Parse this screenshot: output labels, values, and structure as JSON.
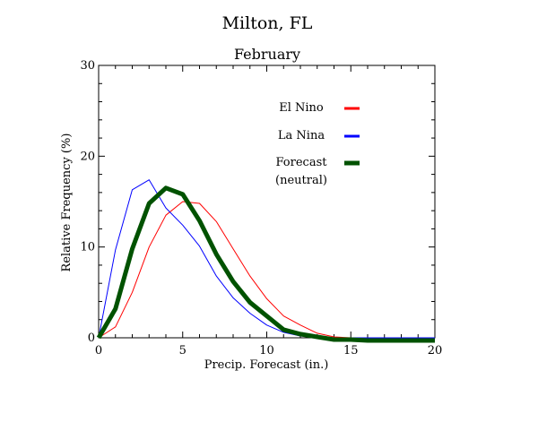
{
  "chart_data": {
    "type": "line",
    "title": "Milton, FL",
    "subtitle": "February",
    "xlabel": "Precip. Forecast (in.)",
    "ylabel": "Relative Frequency (%)",
    "xlim": [
      0,
      20
    ],
    "ylim": [
      0,
      30
    ],
    "x_ticks": [
      0,
      5,
      10,
      15,
      20
    ],
    "y_ticks": [
      0,
      10,
      20,
      30
    ],
    "grid": false,
    "legend_position": "top-right",
    "x": [
      0,
      1,
      2,
      3,
      4,
      5,
      6,
      7,
      8,
      9,
      10,
      11,
      12,
      13,
      14,
      15,
      16,
      17,
      18,
      19,
      20
    ],
    "series": [
      {
        "name": "El Nino",
        "color": "#ff0000",
        "line_weight": "thin",
        "values": [
          0,
          1.2,
          5,
          10,
          13.5,
          15,
          14.8,
          12.8,
          9.8,
          6.8,
          4.3,
          2.4,
          1.4,
          0.5,
          0.1,
          0,
          0,
          0,
          0,
          0,
          0
        ]
      },
      {
        "name": "La Nina",
        "color": "#0000ff",
        "line_weight": "thin",
        "values": [
          0,
          9.7,
          16.3,
          17.4,
          14.3,
          12.4,
          10.1,
          6.8,
          4.4,
          2.7,
          1.4,
          0.6,
          0.2,
          0.1,
          0,
          0,
          0,
          0,
          0,
          0,
          0
        ]
      },
      {
        "name": "Forecast (neutral)",
        "legend_lines": [
          "Forecast",
          "(neutral)"
        ],
        "color": "#005200",
        "line_weight": "thick",
        "values": [
          0,
          3.2,
          9.8,
          14.8,
          16.5,
          15.8,
          12.9,
          9.2,
          6.2,
          3.9,
          2.4,
          0.9,
          0.4,
          0.1,
          -0.2,
          -0.2,
          -0.3,
          -0.3,
          -0.3,
          -0.3,
          -0.3
        ]
      }
    ]
  }
}
